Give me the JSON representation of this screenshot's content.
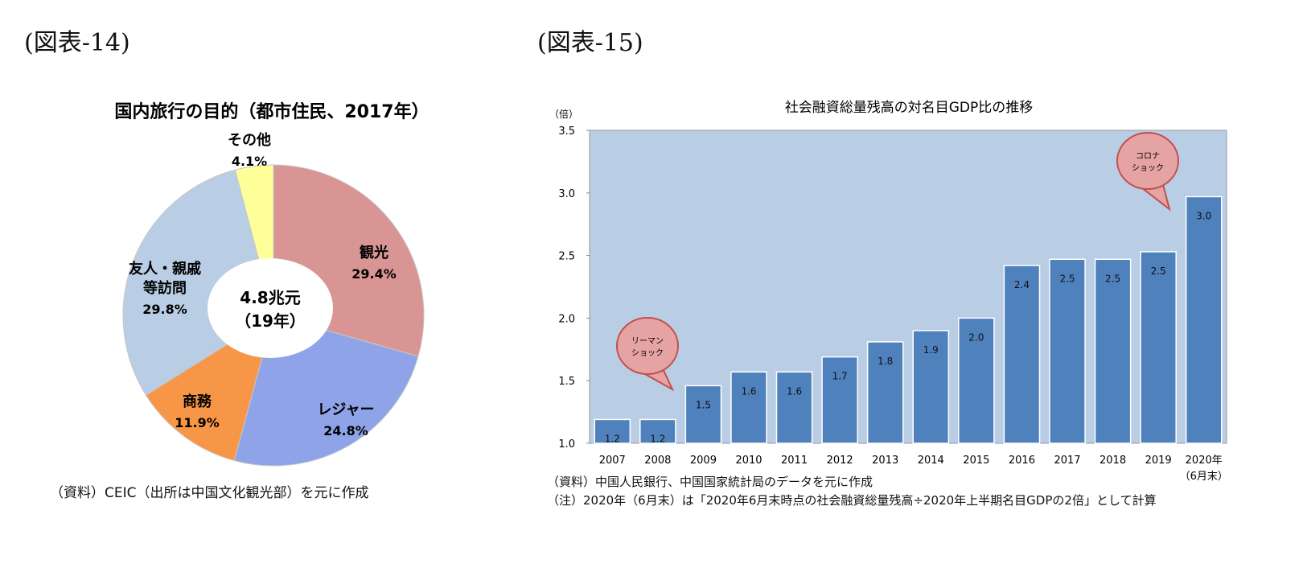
{
  "figures": {
    "left_label": "(図表-14)",
    "right_label": "(図表-15)"
  },
  "chart_data": [
    {
      "type": "pie",
      "style": "donut",
      "title": "国内旅行の目的（都市住民、2017年）",
      "center_label": [
        "4.8兆元",
        "（19年）"
      ],
      "unit": "%",
      "slices": [
        {
          "name": "観光",
          "label_lines": [
            "観光"
          ],
          "value": 29.4,
          "label": "29.4%",
          "color": "#d99594"
        },
        {
          "name": "レジャー",
          "label_lines": [
            "レジャー"
          ],
          "value": 24.8,
          "label": "24.8%",
          "color": "#8ea3e8"
        },
        {
          "name": "商務",
          "label_lines": [
            "商務"
          ],
          "value": 11.9,
          "label": "11.9%",
          "color": "#f79646"
        },
        {
          "name": "友人・親戚等訪問",
          "label_lines": [
            "友人・親戚",
            "等訪問"
          ],
          "value": 29.8,
          "label": "29.8%",
          "color": "#b9cde5"
        },
        {
          "name": "その他",
          "label_lines": [
            "その他"
          ],
          "value": 4.1,
          "label": "4.1%",
          "color": "#ffff99"
        }
      ],
      "source": "（資料）CEIC（出所は中国文化観光部）を元に作成"
    },
    {
      "type": "bar",
      "title": "社会融資総量残高の対名目GDP比の推移",
      "ylabel": "（倍）",
      "ylim": [
        1.0,
        3.5
      ],
      "yticks": [
        "1.0",
        "1.5",
        "2.0",
        "2.5",
        "3.0",
        "3.5"
      ],
      "grid": false,
      "plot_background": "#b9cde5",
      "bar_color": "#4f81bd",
      "categories": [
        "2007",
        "2008",
        "2009",
        "2010",
        "2011",
        "2012",
        "2013",
        "2014",
        "2015",
        "2016",
        "2017",
        "2018",
        "2019",
        "2020年"
      ],
      "category_sublabel": "（6月末）",
      "values": [
        1.19,
        1.19,
        1.46,
        1.57,
        1.57,
        1.69,
        1.81,
        1.9,
        2.0,
        2.42,
        2.47,
        2.47,
        2.53,
        2.97
      ],
      "data_labels": [
        "1.2",
        "1.2",
        "1.5",
        "1.6",
        "1.6",
        "1.7",
        "1.8",
        "1.9",
        "2.0",
        "2.4",
        "2.5",
        "2.5",
        "2.5",
        "3.0"
      ],
      "annotations": [
        {
          "lines": [
            "リーマン",
            "ショック"
          ],
          "points_to": "2009",
          "color": "#e6a3a3"
        },
        {
          "lines": [
            "コロナ",
            "ショック"
          ],
          "points_to": "2020年",
          "color": "#e6a3a3"
        }
      ],
      "source": "（資料）中国人民銀行、中国国家統計局のデータを元に作成",
      "note": "（注）2020年（6月末）は「2020年6月末時点の社会融資総量残高÷2020年上半期名目GDPの2倍」として計算"
    }
  ]
}
